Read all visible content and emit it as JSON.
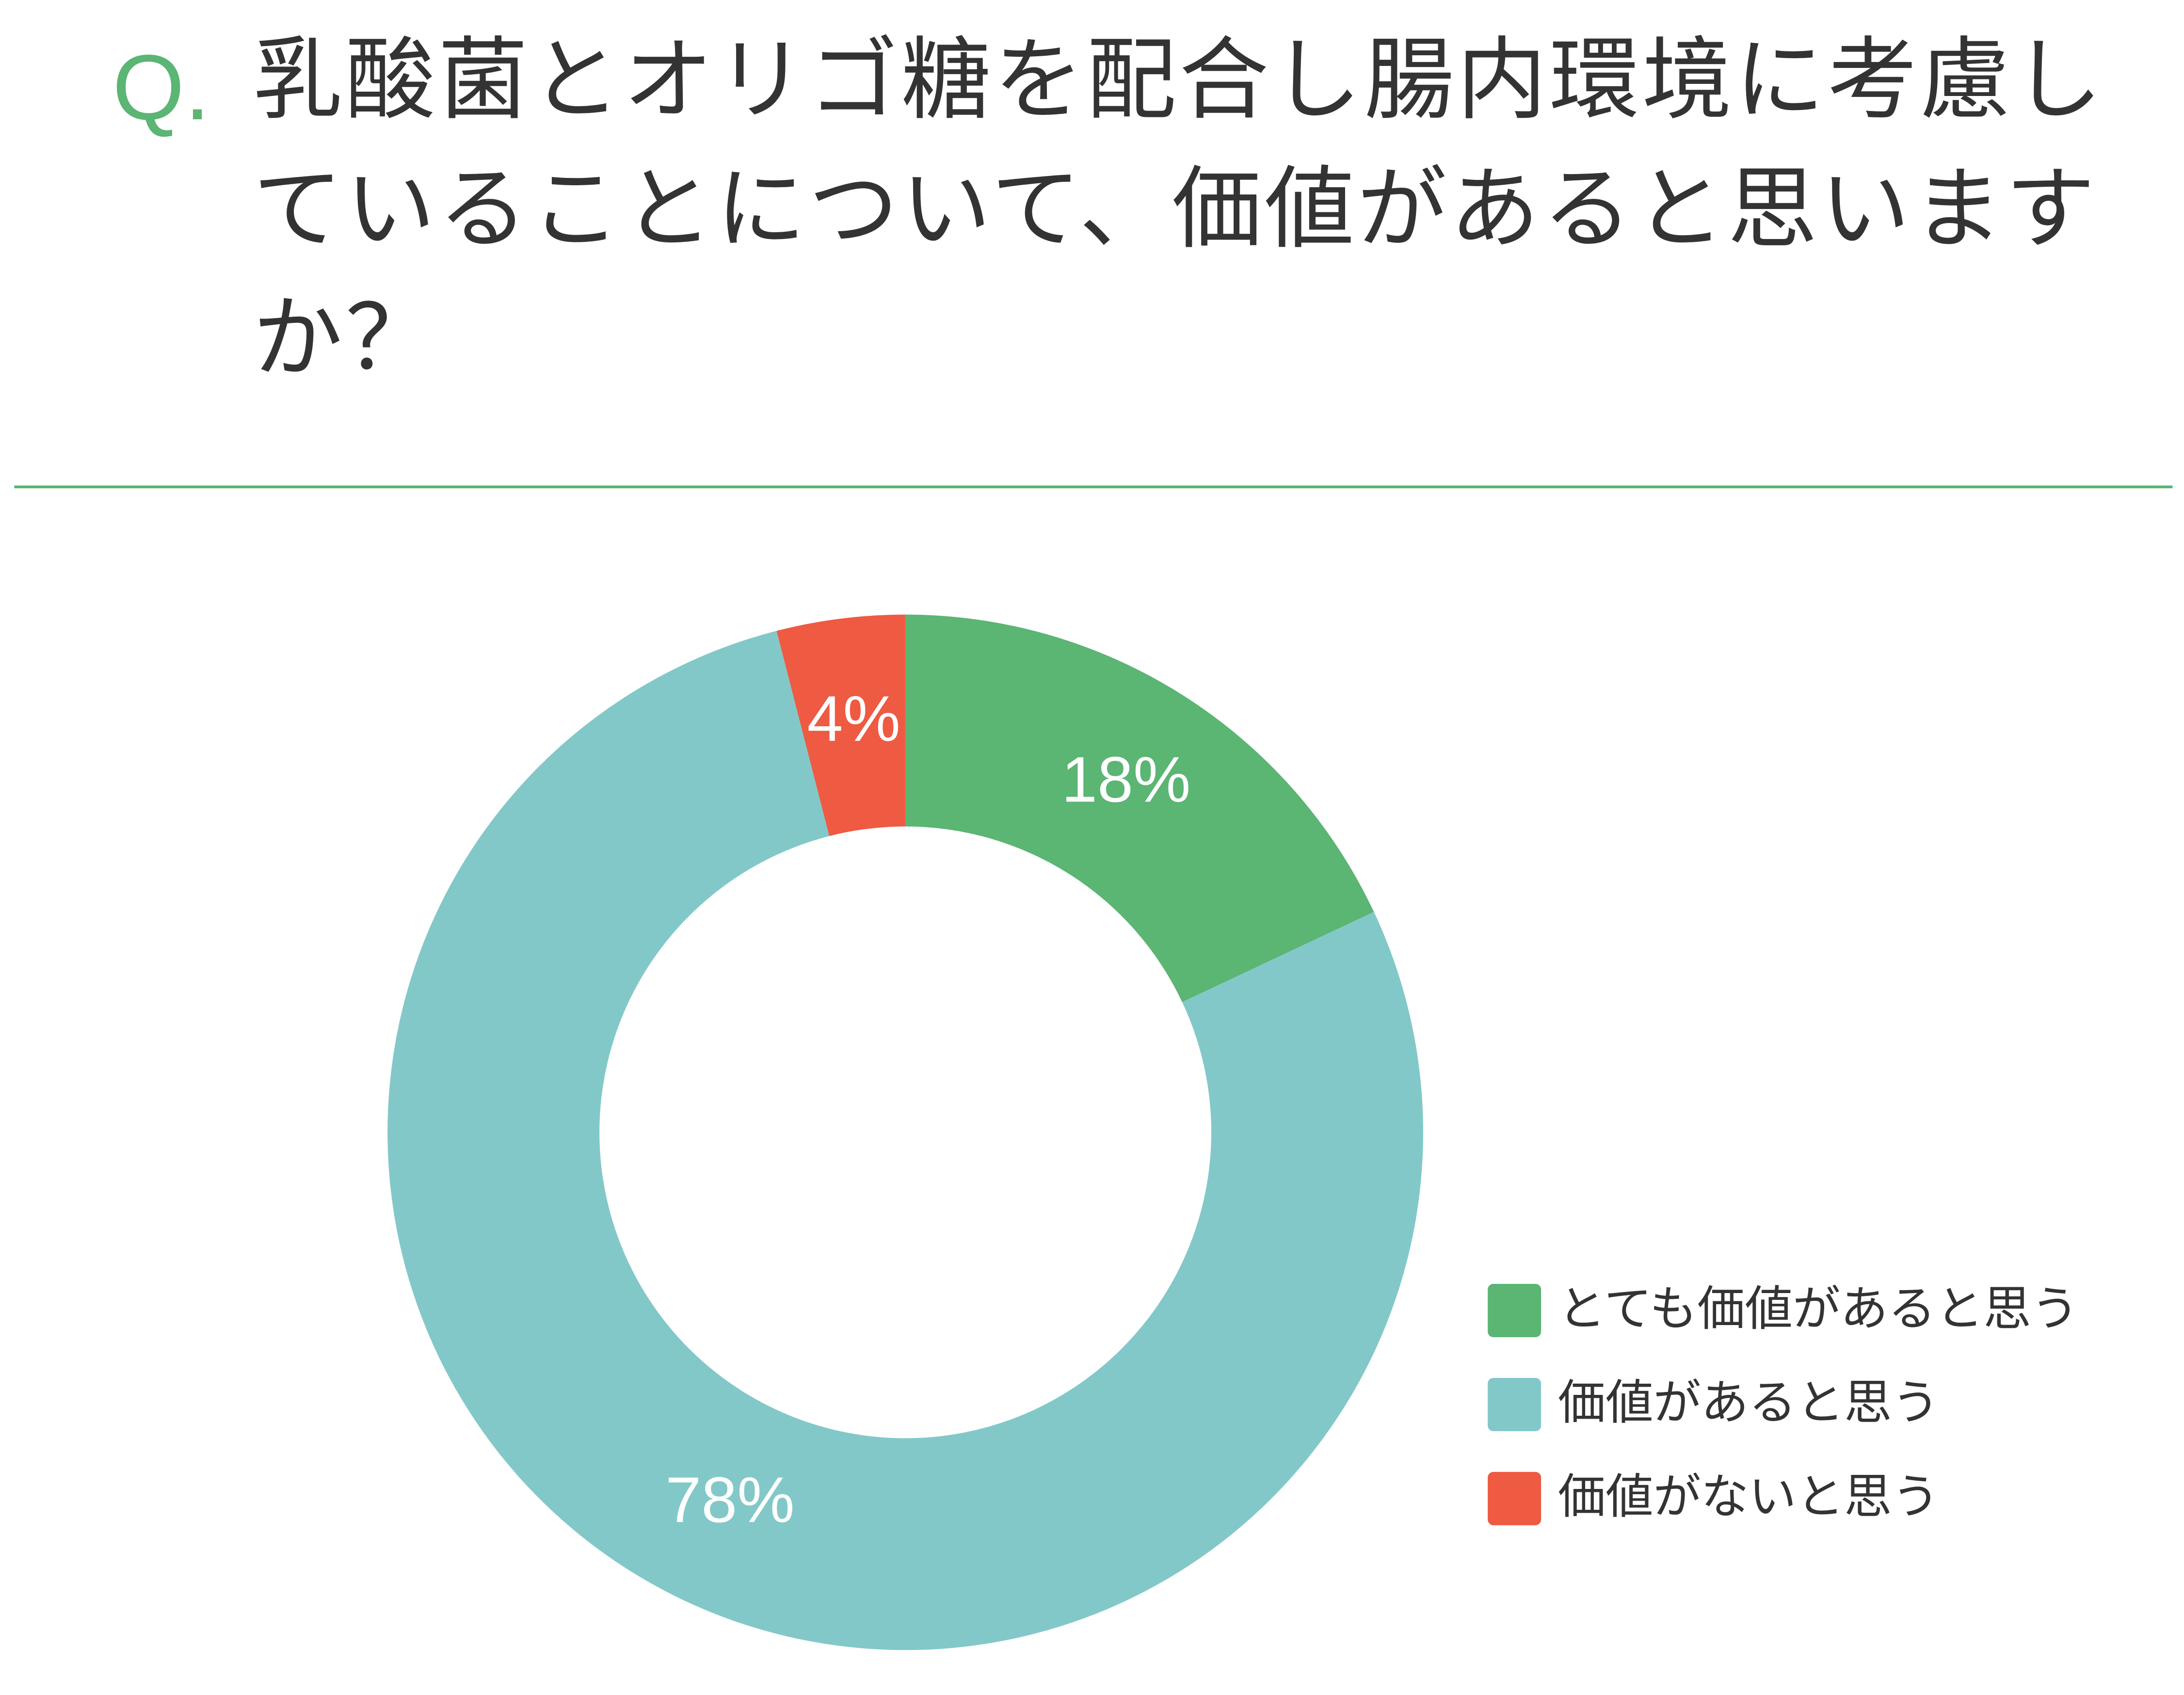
{
  "chart_data": {
    "type": "pie",
    "question_label": "Q.",
    "title": "乳酸菌とオリゴ糖を配合し腸内環境に考慮していることについて、価値があると思いますか？",
    "categories": [
      "とても価値があると思う",
      "価値があると思う",
      "価値がないと思う"
    ],
    "values": [
      18,
      78,
      4
    ],
    "value_labels": [
      "18%",
      "78%",
      "4%"
    ],
    "colors": [
      "#5bb573",
      "#83c8c9",
      "#ee5a42"
    ],
    "legend": "right"
  }
}
